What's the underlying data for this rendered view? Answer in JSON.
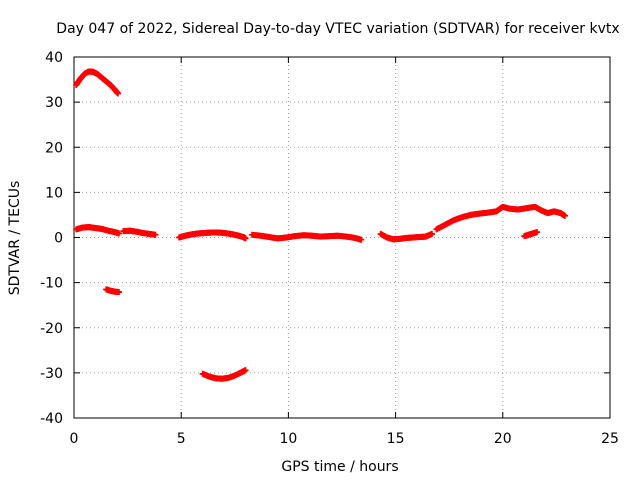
{
  "chart_data": {
    "type": "scatter",
    "title": "Day 047 of 2022, Sidereal Day-to-day VTEC variation (SDTVAR) for receiver kvtx",
    "xlabel": "GPS time / hours",
    "ylabel": "SDTVAR / TECUs",
    "xlim": [
      0,
      25
    ],
    "ylim": [
      -40,
      40
    ],
    "x_ticks": [
      0,
      5,
      10,
      15,
      20,
      25
    ],
    "x_tick_labels": [
      "0",
      "5",
      "10",
      "15",
      "20",
      "25"
    ],
    "y_ticks": [
      -40,
      -30,
      -20,
      -10,
      0,
      10,
      20,
      30,
      40
    ],
    "y_tick_labels": [
      "-40",
      "-30",
      "-20",
      "-10",
      "0",
      "10",
      "20",
      "30",
      "40"
    ],
    "grid": true,
    "point_color": "#ff0000",
    "series": [
      {
        "name": "SDTVAR",
        "segments": [
          {
            "name": "arc-high",
            "x": [
              0.1,
              0.3,
              0.5,
              0.7,
              0.9,
              1.1,
              1.3,
              1.5,
              1.7,
              1.9,
              2.05
            ],
            "y": [
              33.8,
              35.2,
              36.3,
              36.8,
              36.7,
              36.2,
              35.4,
              34.6,
              33.8,
              32.8,
              31.9
            ]
          },
          {
            "name": "segment-0-2",
            "x": [
              0.1,
              0.4,
              0.7,
              1.0,
              1.3,
              1.6,
              1.9,
              2.1
            ],
            "y": [
              1.8,
              2.2,
              2.3,
              2.1,
              1.9,
              1.5,
              1.2,
              0.9
            ]
          },
          {
            "name": "segment-2-4",
            "x": [
              2.3,
              2.6,
              2.9,
              3.2,
              3.5,
              3.8
            ],
            "y": [
              1.4,
              1.5,
              1.3,
              1.0,
              0.8,
              0.6
            ]
          },
          {
            "name": "arc-minus12",
            "x": [
              1.5,
              1.7,
              1.9,
              2.1
            ],
            "y": [
              -11.5,
              -11.8,
              -12.0,
              -12.1
            ]
          },
          {
            "name": "segment-5-8",
            "x": [
              4.9,
              5.2,
              5.5,
              5.8,
              6.1,
              6.4,
              6.7,
              7.0,
              7.3,
              7.6,
              7.9,
              8.0
            ],
            "y": [
              0.0,
              0.4,
              0.7,
              0.9,
              1.0,
              1.1,
              1.1,
              1.0,
              0.8,
              0.5,
              0.1,
              -0.2
            ]
          },
          {
            "name": "arc-minus30",
            "x": [
              6.0,
              6.3,
              6.6,
              6.9,
              7.2,
              7.5,
              7.8,
              8.0
            ],
            "y": [
              -30.2,
              -30.8,
              -31.2,
              -31.3,
              -31.1,
              -30.6,
              -29.9,
              -29.4
            ]
          },
          {
            "name": "segment-8-13",
            "x": [
              8.3,
              8.7,
              9.1,
              9.5,
              9.9,
              10.3,
              10.7,
              11.1,
              11.5,
              11.9,
              12.3,
              12.7,
              13.1,
              13.4
            ],
            "y": [
              0.6,
              0.4,
              0.1,
              -0.2,
              0.0,
              0.3,
              0.5,
              0.4,
              0.2,
              0.3,
              0.4,
              0.2,
              -0.1,
              -0.5
            ]
          },
          {
            "name": "segment-14-17",
            "x": [
              14.3,
              14.6,
              14.9,
              15.2,
              15.5,
              15.8,
              16.1,
              16.4,
              16.7
            ],
            "y": [
              0.8,
              0.0,
              -0.4,
              -0.3,
              -0.1,
              0.0,
              0.1,
              0.2,
              0.8
            ]
          },
          {
            "name": "segment-17-23",
            "x": [
              16.9,
              17.3,
              17.7,
              18.1,
              18.5,
              18.9,
              19.3,
              19.7,
              20.0,
              20.3,
              20.7,
              21.1,
              21.5,
              21.8,
              22.1,
              22.4,
              22.7,
              22.9
            ],
            "y": [
              1.8,
              2.8,
              3.8,
              4.5,
              5.0,
              5.3,
              5.5,
              5.8,
              6.8,
              6.4,
              6.2,
              6.5,
              6.8,
              6.0,
              5.4,
              5.8,
              5.4,
              4.8
            ]
          },
          {
            "name": "arc-21",
            "x": [
              21.0,
              21.2,
              21.4,
              21.6
            ],
            "y": [
              0.3,
              0.6,
              0.9,
              1.2
            ]
          }
        ]
      }
    ]
  }
}
